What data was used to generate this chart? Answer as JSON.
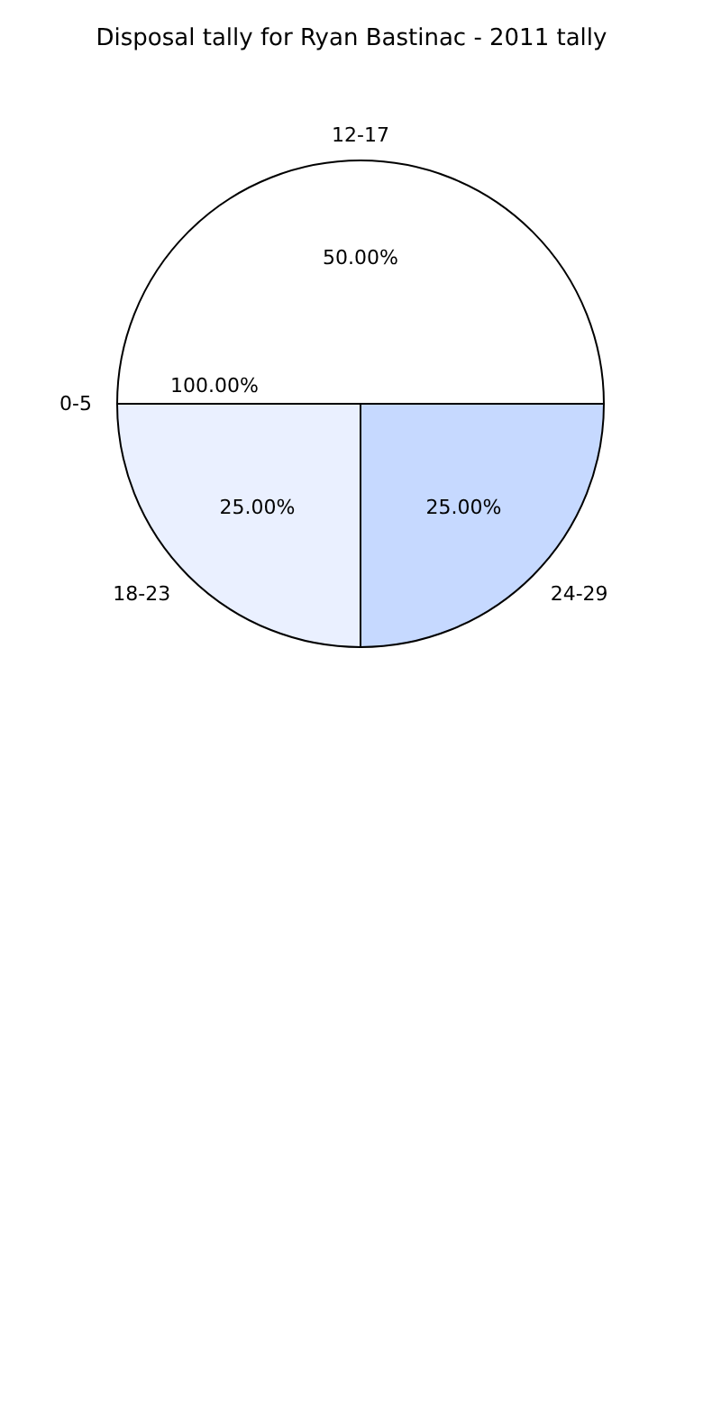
{
  "chart_data": {
    "type": "pie",
    "title": "Disposal tally for Ryan Bastinac - 2011 tally",
    "categories": [
      "0-5",
      "12-17",
      "24-29",
      "18-23"
    ],
    "values": [
      0,
      50,
      25,
      25
    ],
    "value_labels": [
      null,
      "50.00%",
      "25.00%",
      "25.00%"
    ],
    "annotations": [
      "100.00%"
    ],
    "colors": [
      "#ffffff",
      "#ffffff",
      "#c6d9ff",
      "#eaf0ff"
    ]
  }
}
